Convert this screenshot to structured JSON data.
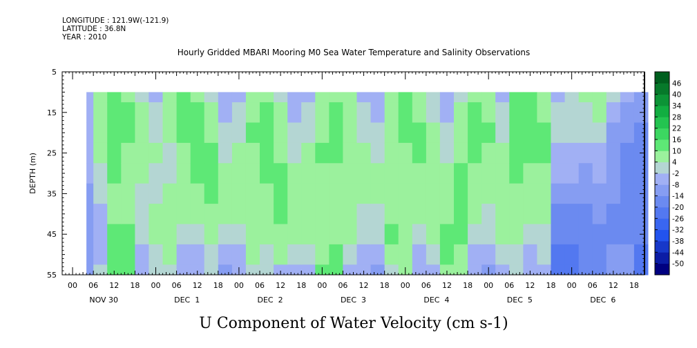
{
  "header": {
    "longitude": "LONGITUDE : 121.9W(-121.9)",
    "latitude": "LATITUDE : 36.8N",
    "year": "YEAR : 2010"
  },
  "chart_data": {
    "type": "heatmap",
    "title": "Hourly Gridded MBARI Mooring M0 Sea Water Temperature and Salinity Observations",
    "caption": "U Component of Water Velocity (cm s-1)",
    "ylabel": "DEPTH (m)",
    "ylim": [
      55,
      5
    ],
    "y_ticks": [
      5,
      15,
      25,
      35,
      45,
      55
    ],
    "data_depth_range": [
      10,
      55
    ],
    "x_hour_ticks": [
      "00",
      "06",
      "12",
      "18",
      "00",
      "06",
      "12",
      "18",
      "00",
      "06",
      "12",
      "18",
      "00",
      "06",
      "12",
      "18",
      "00",
      "06",
      "12",
      "18",
      "00",
      "06",
      "12",
      "18",
      "00",
      "06",
      "12",
      "18"
    ],
    "x_day_labels": [
      "NOV 30",
      "DEC  1",
      "DEC  2",
      "DEC  3",
      "DEC  4",
      "DEC  5",
      "DEC  6"
    ],
    "x_range_hours_from_nov30_00": [
      -3,
      165
    ],
    "data_start_hours_from_nov30_00": 4,
    "data_end_hours_from_nov30_00": 164,
    "colorbar": {
      "levels": [
        "46",
        "40",
        "34",
        "28",
        "22",
        "16",
        "10",
        "4",
        "-2",
        "-8",
        "-14",
        "-20",
        "-26",
        "-32",
        "-38",
        "-44",
        "-50"
      ],
      "min": -50,
      "max": 52
    },
    "columns": [
      {
        "hour": 4,
        "u": [
          -6,
          -4,
          -4,
          -6,
          -8,
          -10,
          -12,
          -14,
          -14,
          -14
        ]
      },
      {
        "hour": 8,
        "u": [
          4,
          6,
          6,
          4,
          2,
          -2,
          -6,
          -8,
          -4,
          -2
        ]
      },
      {
        "hour": 12,
        "u": [
          10,
          12,
          12,
          10,
          10,
          8,
          8,
          10,
          12,
          12
        ]
      },
      {
        "hour": 16,
        "u": [
          8,
          10,
          10,
          8,
          6,
          6,
          8,
          10,
          12,
          14
        ]
      },
      {
        "hour": 20,
        "u": [
          2,
          4,
          6,
          6,
          4,
          2,
          2,
          -2,
          -6,
          -8
        ]
      },
      {
        "hour": 24,
        "u": [
          -4,
          -2,
          2,
          4,
          2,
          2,
          4,
          4,
          2,
          -2
        ]
      },
      {
        "hour": 28,
        "u": [
          6,
          6,
          4,
          2,
          2,
          4,
          6,
          8,
          4,
          2
        ]
      },
      {
        "hour": 32,
        "u": [
          10,
          12,
          10,
          8,
          6,
          4,
          4,
          2,
          -4,
          -6
        ]
      },
      {
        "hour": 36,
        "u": [
          8,
          10,
          12,
          14,
          12,
          8,
          4,
          -2,
          -6,
          -8
        ]
      },
      {
        "hour": 40,
        "u": [
          2,
          4,
          6,
          10,
          12,
          10,
          8,
          6,
          2,
          -2
        ]
      },
      {
        "hour": 44,
        "u": [
          -6,
          -4,
          -2,
          2,
          4,
          6,
          4,
          2,
          -6,
          -10
        ]
      },
      {
        "hour": 48,
        "u": [
          -4,
          -2,
          2,
          4,
          6,
          6,
          4,
          2,
          -4,
          -6
        ]
      },
      {
        "hour": 52,
        "u": [
          6,
          8,
          10,
          8,
          6,
          4,
          4,
          6,
          4,
          2
        ]
      },
      {
        "hour": 56,
        "u": [
          8,
          10,
          12,
          12,
          10,
          8,
          6,
          4,
          2,
          -2
        ]
      },
      {
        "hour": 60,
        "u": [
          2,
          4,
          6,
          8,
          10,
          12,
          10,
          6,
          4,
          -4
        ]
      },
      {
        "hour": 64,
        "u": [
          -6,
          -4,
          -2,
          2,
          4,
          6,
          6,
          4,
          -2,
          -6
        ]
      },
      {
        "hour": 68,
        "u": [
          -4,
          -2,
          2,
          4,
          6,
          8,
          8,
          6,
          2,
          -4
        ]
      },
      {
        "hour": 72,
        "u": [
          4,
          6,
          8,
          10,
          8,
          6,
          4,
          6,
          8,
          10
        ]
      },
      {
        "hour": 76,
        "u": [
          8,
          10,
          12,
          10,
          8,
          6,
          6,
          8,
          10,
          12
        ]
      },
      {
        "hour": 80,
        "u": [
          4,
          6,
          8,
          8,
          6,
          4,
          4,
          4,
          2,
          -4
        ]
      },
      {
        "hour": 84,
        "u": [
          -4,
          -2,
          2,
          4,
          6,
          4,
          2,
          -2,
          -6,
          -8
        ]
      },
      {
        "hour": 88,
        "u": [
          -6,
          -4,
          -2,
          2,
          4,
          4,
          2,
          -2,
          -8,
          -10
        ]
      },
      {
        "hour": 92,
        "u": [
          4,
          6,
          8,
          6,
          4,
          6,
          8,
          10,
          6,
          2
        ]
      },
      {
        "hour": 96,
        "u": [
          10,
          12,
          10,
          8,
          6,
          4,
          4,
          6,
          8,
          6
        ]
      },
      {
        "hour": 100,
        "u": [
          6,
          8,
          10,
          10,
          8,
          6,
          4,
          2,
          -4,
          -8
        ]
      },
      {
        "hour": 104,
        "u": [
          -2,
          2,
          4,
          6,
          8,
          8,
          6,
          4,
          2,
          -6
        ]
      },
      {
        "hour": 108,
        "u": [
          -6,
          -4,
          -2,
          2,
          4,
          6,
          8,
          10,
          10,
          8
        ]
      },
      {
        "hour": 112,
        "u": [
          2,
          4,
          6,
          8,
          10,
          12,
          12,
          10,
          8,
          6
        ]
      },
      {
        "hour": 116,
        "u": [
          8,
          10,
          12,
          10,
          8,
          6,
          4,
          2,
          -4,
          -8
        ]
      },
      {
        "hour": 120,
        "u": [
          6,
          8,
          10,
          8,
          6,
          4,
          2,
          -2,
          -6,
          -10
        ]
      },
      {
        "hour": 124,
        "u": [
          -4,
          -2,
          2,
          4,
          6,
          8,
          8,
          6,
          2,
          -4
        ]
      },
      {
        "hour": 128,
        "u": [
          10,
          12,
          14,
          12,
          10,
          8,
          6,
          4,
          2,
          -2
        ]
      },
      {
        "hour": 132,
        "u": [
          12,
          14,
          12,
          10,
          8,
          6,
          4,
          2,
          -4,
          -8
        ]
      },
      {
        "hour": 136,
        "u": [
          6,
          8,
          10,
          10,
          8,
          6,
          4,
          2,
          -2,
          -6
        ]
      },
      {
        "hour": 140,
        "u": [
          -4,
          -2,
          -2,
          -4,
          -8,
          -12,
          -16,
          -20,
          -24,
          -26
        ]
      },
      {
        "hour": 144,
        "u": [
          2,
          2,
          -2,
          -4,
          -8,
          -12,
          -16,
          -20,
          -22,
          -24
        ]
      },
      {
        "hour": 148,
        "u": [
          4,
          2,
          -2,
          -6,
          -10,
          -14,
          -16,
          -18,
          -20,
          -20
        ]
      },
      {
        "hour": 152,
        "u": [
          6,
          4,
          2,
          -4,
          -8,
          -12,
          -14,
          -16,
          -18,
          -16
        ]
      },
      {
        "hour": 156,
        "u": [
          -2,
          -6,
          -10,
          -12,
          -14,
          -14,
          -16,
          -16,
          -14,
          -12
        ]
      },
      {
        "hour": 160,
        "u": [
          -8,
          -12,
          -14,
          -16,
          -16,
          -18,
          -18,
          -16,
          -14,
          -10
        ]
      },
      {
        "hour": 164,
        "u": [
          -12,
          -14,
          -16,
          -18,
          -18,
          -20,
          -20,
          -20,
          -22,
          -24
        ]
      }
    ],
    "column_depths": [
      10,
      15,
      20,
      25,
      30,
      35,
      40,
      45,
      50,
      55
    ]
  }
}
